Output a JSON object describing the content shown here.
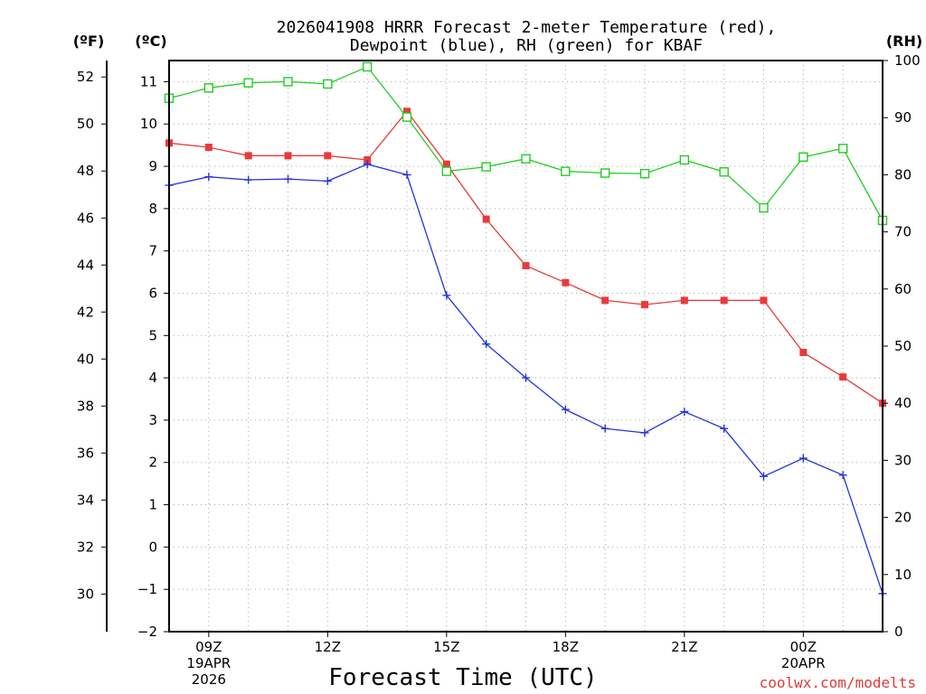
{
  "chart_data": {
    "type": "line",
    "title_line1": "2026041908 HRRR Forecast 2-meter Temperature (red),",
    "title_line2": "Dewpoint (blue), RH (green) for KBAF",
    "xlabel": "Forecast Time (UTC)",
    "credit": "coolwx.com/modelts",
    "units": {
      "fahrenheit": "(ºF)",
      "celsius": "(ºC)",
      "rh": "(RH)"
    },
    "x_hours": [
      8,
      9,
      10,
      11,
      12,
      13,
      14,
      15,
      16,
      17,
      18,
      19,
      20,
      21,
      22,
      23,
      24,
      25,
      26
    ],
    "x_ticks": [
      {
        "hour": 9,
        "lines": [
          "09Z",
          "19APR",
          "2026"
        ]
      },
      {
        "hour": 12,
        "lines": [
          "12Z"
        ]
      },
      {
        "hour": 15,
        "lines": [
          "15Z"
        ]
      },
      {
        "hour": 18,
        "lines": [
          "18Z"
        ]
      },
      {
        "hour": 21,
        "lines": [
          "21Z"
        ]
      },
      {
        "hour": 24,
        "lines": [
          "00Z",
          "20APR"
        ]
      }
    ],
    "xlim": [
      8,
      26
    ],
    "ylim_c": [
      -2,
      11.5
    ],
    "ylim_rh": [
      0,
      100
    ],
    "yticks_c": [
      -2,
      -1,
      0,
      1,
      2,
      3,
      4,
      5,
      6,
      7,
      8,
      9,
      10,
      11
    ],
    "yticks_f": [
      30,
      32,
      34,
      36,
      38,
      40,
      42,
      44,
      46,
      48,
      50,
      52
    ],
    "yticks_rh": [
      0,
      10,
      20,
      30,
      40,
      50,
      60,
      70,
      80,
      90,
      100
    ],
    "series": [
      {
        "name": "Temperature",
        "color": "#e83a3a",
        "marker": "filled-square",
        "values": [
          9.55,
          9.45,
          9.25,
          9.25,
          9.25,
          9.15,
          10.3,
          9.05,
          7.75,
          6.65,
          6.25,
          5.83,
          5.73,
          5.83,
          5.83,
          5.83,
          4.6,
          4.02,
          3.4
        ]
      },
      {
        "name": "Dewpoint",
        "color": "#2233dd",
        "marker": "plus",
        "values": [
          8.55,
          8.75,
          8.68,
          8.7,
          8.65,
          9.05,
          8.8,
          5.95,
          4.8,
          4.0,
          3.25,
          2.8,
          2.7,
          3.2,
          2.8,
          1.67,
          2.1,
          1.7,
          -1.1
        ]
      },
      {
        "name": "RH",
        "color": "#22cc22",
        "marker": "open-square",
        "values": [
          93.4,
          95.2,
          96.1,
          96.3,
          95.9,
          98.9,
          90.1,
          80.6,
          81.4,
          82.8,
          80.6,
          80.3,
          80.2,
          82.6,
          80.5,
          74.2,
          83.1,
          84.6,
          72.0
        ]
      }
    ]
  }
}
